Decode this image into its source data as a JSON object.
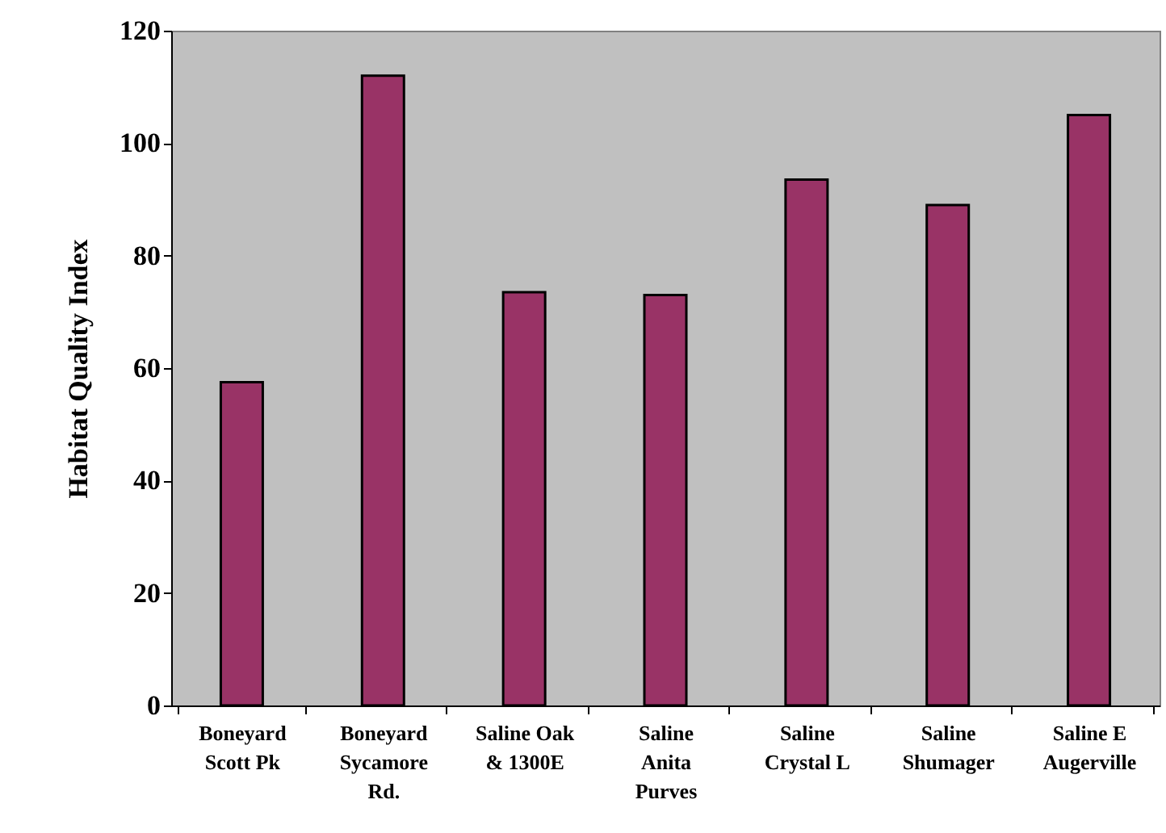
{
  "chart_data": {
    "type": "bar",
    "ylabel": "Habitat Quality Index",
    "categories": [
      "Boneyard\nScott Pk",
      "Boneyard\nSycamore\nRd.",
      "Saline Oak\n& 1300E",
      "Saline\nAnita\nPurves",
      "Saline\nCrystal L",
      "Saline\nShumager",
      "Saline E\nAugerville"
    ],
    "values": [
      57.5,
      112,
      73.5,
      73,
      93.5,
      89,
      105
    ],
    "color": "#993366",
    "ylim": [
      0,
      120
    ],
    "yticks": [
      0,
      20,
      40,
      60,
      80,
      100,
      120
    ],
    "grid": false
  }
}
